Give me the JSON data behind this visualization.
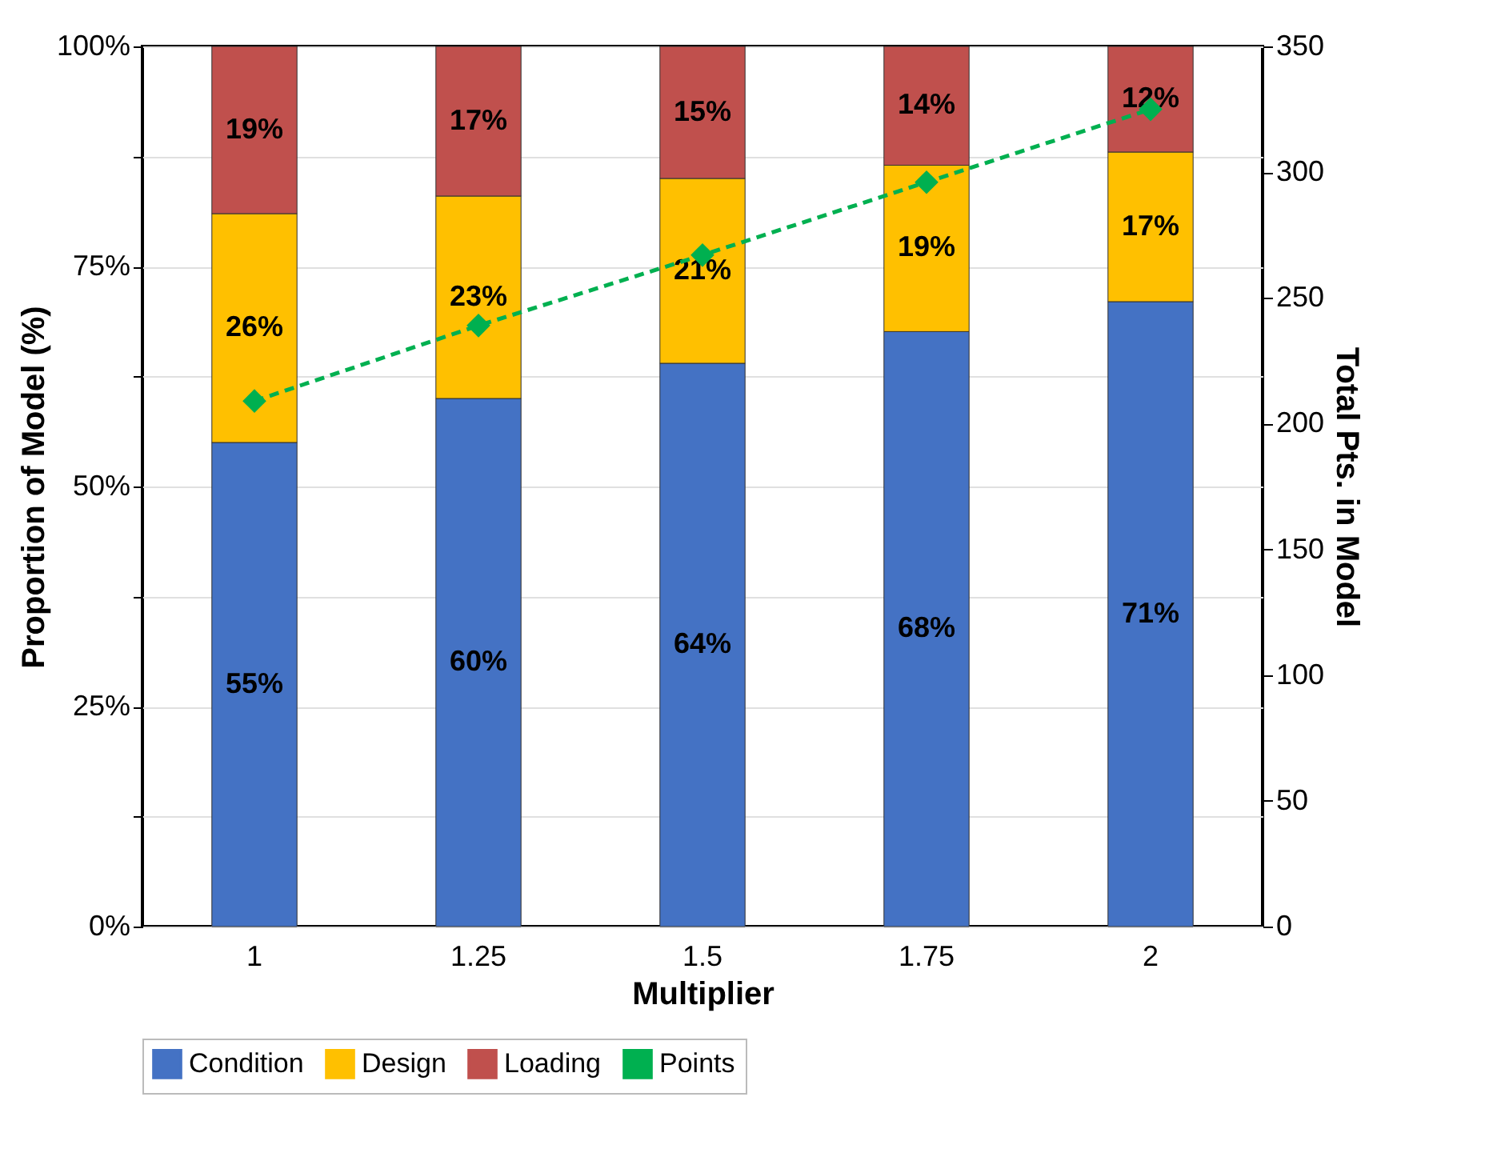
{
  "chart_data": {
    "type": "bar",
    "stacked": true,
    "xlabel": "Multiplier",
    "ylabel": "Proportion of Model (%)",
    "y2label": "Total Pts. in Model",
    "categories": [
      "1",
      "1.25",
      "1.5",
      "1.75",
      "2"
    ],
    "series": [
      {
        "name": "Condition",
        "color": "#4472c4",
        "values": [
          55,
          60,
          64,
          67.6,
          71
        ],
        "value_labels": [
          "55%",
          "60%",
          "64%",
          "68%",
          "71%"
        ]
      },
      {
        "name": "Design",
        "color": "#ffc000",
        "values": [
          26,
          23,
          21,
          18.9,
          17
        ],
        "value_labels": [
          "26%",
          "23%",
          "21%",
          "19%",
          "17%"
        ]
      },
      {
        "name": "Loading",
        "color": "#c0504d",
        "values": [
          19,
          17,
          15,
          13.5,
          12
        ],
        "value_labels": [
          "19%",
          "17%",
          "15%",
          "14%",
          "12%"
        ]
      },
      {
        "name": "Points",
        "type": "line",
        "axis": "y2",
        "color": "#00b050",
        "marker": "diamond",
        "line_style": "dashed",
        "values": [
          209,
          239,
          267,
          296,
          325
        ]
      }
    ],
    "ylim": [
      0,
      100
    ],
    "yticks": [
      {
        "value": 0,
        "label": "0%"
      },
      {
        "value": 12.5,
        "label": null
      },
      {
        "value": 25,
        "label": "25%"
      },
      {
        "value": 37.5,
        "label": null
      },
      {
        "value": 50,
        "label": "50%"
      },
      {
        "value": 62.5,
        "label": null
      },
      {
        "value": 75,
        "label": "75%"
      },
      {
        "value": 87.5,
        "label": null
      },
      {
        "value": 100,
        "label": "100%"
      }
    ],
    "y2lim": [
      0,
      350
    ],
    "y2ticks": [
      0,
      50,
      100,
      150,
      200,
      250,
      300,
      350
    ],
    "grid": "y",
    "legend": "bottom"
  }
}
